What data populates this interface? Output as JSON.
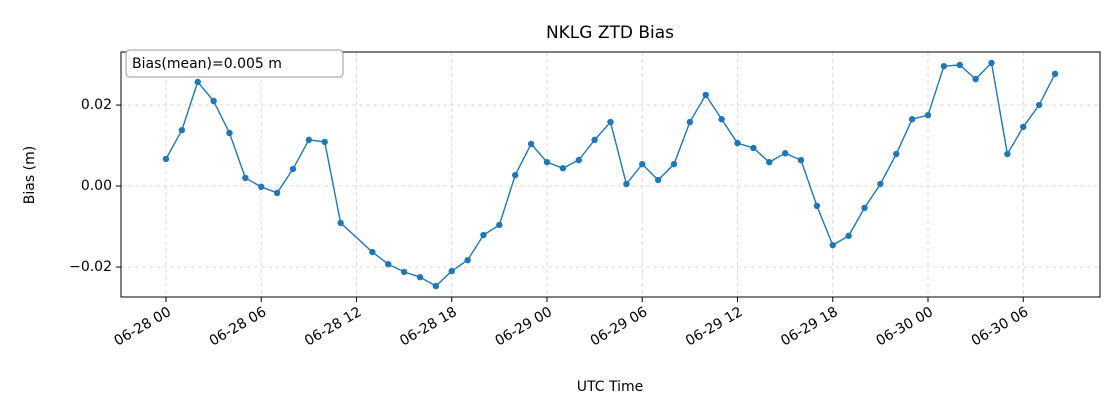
{
  "chart_data": {
    "type": "line",
    "title": "NKLG ZTD Bias",
    "x_label": "UTC Time",
    "y_label": "Bias (m)",
    "annotation": "Bias(mean)=0.005 m",
    "x": [
      "06-28 00",
      "06-28 01",
      "06-28 02",
      "06-28 03",
      "06-28 04",
      "06-28 05",
      "06-28 06",
      "06-28 07",
      "06-28 08",
      "06-28 09",
      "06-28 10",
      "06-28 11",
      "06-28 13",
      "06-28 14",
      "06-28 15",
      "06-28 16",
      "06-28 17",
      "06-28 18",
      "06-28 19",
      "06-28 20",
      "06-28 21",
      "06-28 22",
      "06-28 23",
      "06-29 00",
      "06-29 01",
      "06-29 02",
      "06-29 03",
      "06-29 04",
      "06-29 05",
      "06-29 06",
      "06-29 07",
      "06-29 08",
      "06-29 09",
      "06-29 10",
      "06-29 11",
      "06-29 12",
      "06-29 13",
      "06-29 14",
      "06-29 15",
      "06-29 16",
      "06-29 17",
      "06-29 18",
      "06-29 19",
      "06-29 20",
      "06-29 21",
      "06-29 22",
      "06-29 23",
      "06-30 00",
      "06-30 01",
      "06-30 02",
      "06-30 03",
      "06-30 04",
      "06-30 05",
      "06-30 06",
      "06-30 07",
      "06-30 08"
    ],
    "series": [
      {
        "name": "Bias",
        "color": "#1f77b4",
        "values": [
          0.0067,
          0.0138,
          0.0257,
          0.021,
          0.0131,
          0.002,
          -0.0002,
          -0.0017,
          0.0042,
          0.0114,
          0.0109,
          -0.0091,
          -0.0163,
          -0.0193,
          -0.0212,
          -0.0225,
          -0.0247,
          -0.021,
          -0.0183,
          -0.0121,
          -0.0096,
          0.0027,
          0.0104,
          0.0059,
          0.0044,
          0.0064,
          0.0114,
          0.0158,
          0.0005,
          0.0054,
          0.0015,
          0.0054,
          0.0158,
          0.0225,
          0.0165,
          0.0106,
          0.0094,
          0.0059,
          0.0081,
          0.0064,
          -0.0049,
          -0.0146,
          -0.0123,
          -0.0054,
          0.0005,
          0.0079,
          0.0165,
          0.0175,
          0.0296,
          0.0299,
          0.0264,
          0.0304,
          0.0079,
          0.0146,
          0.02,
          0.0277
        ]
      }
    ],
    "xlim": [
      "06-27 21:10",
      "06-30 10:50"
    ],
    "xticks": [
      "06-28 00",
      "06-28 06",
      "06-28 12",
      "06-28 18",
      "06-29 00",
      "06-29 06",
      "06-29 12",
      "06-29 18",
      "06-30 00",
      "06-30 06"
    ],
    "ylim": [
      -0.0274,
      0.0331
    ],
    "yticks": [
      {
        "value": -0.02,
        "label": "−0.02"
      },
      {
        "value": 0,
        "label": "0.00"
      },
      {
        "value": 0.02,
        "label": "0.02"
      }
    ],
    "grid": true
  }
}
